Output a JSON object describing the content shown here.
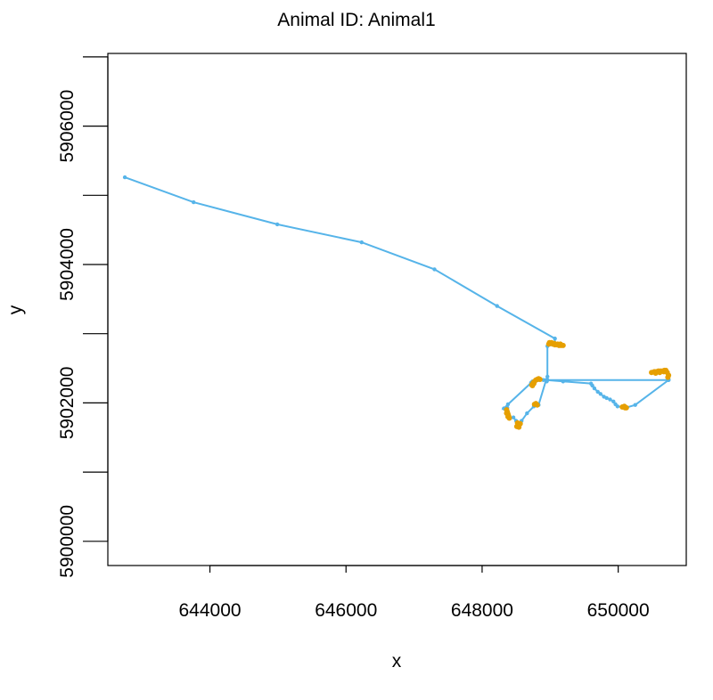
{
  "chart_data": {
    "type": "line",
    "title": "Animal ID: Animal1",
    "xlabel": "x",
    "ylabel": "y",
    "xlim": [
      642500,
      651000
    ],
    "ylim": [
      5899650,
      5907050
    ],
    "xticks": [
      644000,
      646000,
      648000,
      650000
    ],
    "yticks": [
      5900000,
      5901000,
      5902000,
      5903000,
      5904000,
      5905000,
      5906000,
      5907000
    ],
    "ytick_labels": [
      "5900000",
      "",
      "5902000",
      "",
      "5904000",
      "",
      "5906000",
      ""
    ],
    "xtick_labels": [
      "644000",
      "646000",
      "648000",
      "650000"
    ],
    "grid": false,
    "line_color": "#56B4E9",
    "highlight_color": "#E69F00",
    "series": [
      {
        "x": [
          642750,
          643760,
          644990,
          646230,
          647300,
          648220,
          649070,
          649070,
          648960,
          648960,
          648960,
          649190,
          649600,
          649620,
          649650,
          649700,
          649740,
          649790,
          649830,
          649880,
          649930,
          649960,
          649990,
          650080,
          650110,
          650250,
          650740,
          650740,
          648940,
          648830,
          648810,
          648780,
          648760,
          648660,
          648580,
          648540,
          648500,
          648460,
          648410,
          648380,
          648370,
          648320,
          648380,
          648720,
          648740,
          648780,
          648820,
          648860,
          648900,
          648950,
          648960
        ],
        "y": [
          5905260,
          5904900,
          5904580,
          5904320,
          5903930,
          5903400,
          5902930,
          5902850,
          5902820,
          5902380,
          5902330,
          5902310,
          5902280,
          5902250,
          5902210,
          5902160,
          5902130,
          5902090,
          5902070,
          5902050,
          5902020,
          5901980,
          5901950,
          5901940,
          5901930,
          5901970,
          5902330,
          5902330,
          5902330,
          5901970,
          5901980,
          5901970,
          5901950,
          5901850,
          5901740,
          5901690,
          5901740,
          5901790,
          5901780,
          5901830,
          5901930,
          5901920,
          5901980,
          5902290,
          5902310,
          5902330,
          5902330,
          5902340,
          5902330,
          5902310,
          5902330
        ]
      }
    ],
    "highlights": [
      {
        "x": [
          648980,
          649010,
          649040,
          649070,
          649100,
          649130,
          649160,
          649190,
          648990,
          649020,
          649060,
          649110,
          649150
        ],
        "y": [
          5902850,
          5902860,
          5902850,
          5902840,
          5902840,
          5902830,
          5902830,
          5902830,
          5902870,
          5902870,
          5902860,
          5902850,
          5902850
        ]
      },
      {
        "x": [
          650490,
          650530,
          650560,
          650590,
          650620,
          650650,
          650680,
          650700,
          650720,
          650740,
          650730,
          650550,
          650610,
          650670
        ],
        "y": [
          5902440,
          5902450,
          5902450,
          5902460,
          5902460,
          5902460,
          5902470,
          5902470,
          5902440,
          5902400,
          5902370,
          5902430,
          5902440,
          5902450
        ]
      },
      {
        "x": [
          648730,
          648750,
          648770,
          648790,
          648810,
          648830,
          648850,
          648740,
          648760
        ],
        "y": [
          5902260,
          5902290,
          5902310,
          5902330,
          5902340,
          5902350,
          5902340,
          5902250,
          5902280
        ]
      },
      {
        "x": [
          648360,
          648370,
          648380,
          648390,
          648400,
          648360,
          648380
        ],
        "y": [
          5901900,
          5901870,
          5901840,
          5901810,
          5901780,
          5901850,
          5901800
        ]
      },
      {
        "x": [
          648510,
          648530,
          648550,
          648560,
          648540,
          648520
        ],
        "y": [
          5901660,
          5901680,
          5901690,
          5901700,
          5901650,
          5901710
        ]
      },
      {
        "x": [
          650060,
          650080,
          650100,
          650120,
          650090
        ],
        "y": [
          5901940,
          5901940,
          5901930,
          5901930,
          5901950
        ]
      },
      {
        "x": [
          648770,
          648790,
          648810
        ],
        "y": [
          5901980,
          5901990,
          5901970
        ]
      }
    ]
  }
}
